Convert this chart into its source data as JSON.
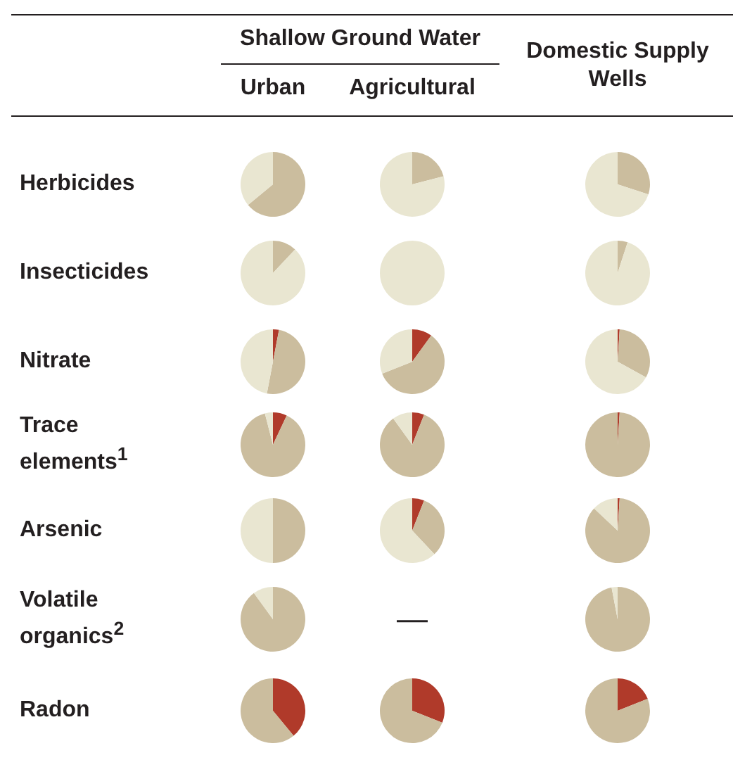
{
  "chart_data": [
    {
      "type": "other",
      "annotations": [
        "Shallow Ground Water",
        "Urban",
        "Agricultural",
        "Domestic Supply Wells",
        "Herbicides",
        "Insecticides",
        "Nitrate",
        "Trace elements$^{1}$",
        "Arsenic",
        "Volatile organics$^{2}$",
        "Radon"
      ]
    },
    {
      "type": "pie",
      "categories": [
        null,
        null,
        null
      ],
      "values": [
        0,
        64,
        36
      ],
      "colors": [
        "#b03a2a",
        "#cbbd9e",
        "#e9e6d1"
      ]
    },
    {
      "type": "pie",
      "categories": [
        null,
        null,
        null
      ],
      "values": [
        0,
        21,
        79
      ],
      "colors": [
        "#b03a2a",
        "#cbbd9e",
        "#e9e6d1"
      ]
    },
    {
      "type": "pie",
      "categories": [
        null,
        null,
        null
      ],
      "values": [
        0,
        30,
        70
      ],
      "colors": [
        "#b03a2a",
        "#cbbd9e",
        "#e9e6d1"
      ]
    },
    {
      "type": "pie",
      "categories": [
        null,
        null,
        null
      ],
      "values": [
        0,
        12,
        88
      ],
      "colors": [
        "#b03a2a",
        "#cbbd9e",
        "#e9e6d1"
      ]
    },
    {
      "type": "pie",
      "categories": [
        null,
        null,
        null
      ],
      "values": [
        0,
        0,
        100
      ],
      "colors": [
        "#b03a2a",
        "#cbbd9e",
        "#e9e6d1"
      ]
    },
    {
      "type": "pie",
      "categories": [
        null,
        null,
        null
      ],
      "values": [
        0,
        5,
        95
      ],
      "colors": [
        "#b03a2a",
        "#cbbd9e",
        "#e9e6d1"
      ]
    },
    {
      "type": "pie",
      "categories": [
        null,
        null,
        null
      ],
      "values": [
        3,
        50,
        47
      ],
      "colors": [
        "#b03a2a",
        "#cbbd9e",
        "#e9e6d1"
      ]
    },
    {
      "type": "pie",
      "categories": [
        null,
        null,
        null
      ],
      "values": [
        10,
        59,
        31
      ],
      "colors": [
        "#b03a2a",
        "#cbbd9e",
        "#e9e6d1"
      ]
    },
    {
      "type": "pie",
      "categories": [
        null,
        null,
        null
      ],
      "values": [
        1,
        32,
        67
      ],
      "colors": [
        "#b03a2a",
        "#cbbd9e",
        "#e9e6d1"
      ]
    },
    {
      "type": "pie",
      "categories": [
        null,
        null,
        null
      ],
      "values": [
        7,
        89,
        4
      ],
      "colors": [
        "#b03a2a",
        "#cbbd9e",
        "#e9e6d1"
      ]
    },
    {
      "type": "pie",
      "categories": [
        null,
        null,
        null
      ],
      "values": [
        6,
        84,
        10
      ],
      "colors": [
        "#b03a2a",
        "#cbbd9e",
        "#e9e6d1"
      ]
    },
    {
      "type": "pie",
      "categories": [
        null,
        null,
        null
      ],
      "values": [
        1,
        99,
        0
      ],
      "colors": [
        "#b03a2a",
        "#cbbd9e",
        "#e9e6d1"
      ]
    },
    {
      "type": "pie",
      "categories": [
        null,
        null,
        null
      ],
      "values": [
        0,
        50,
        50
      ],
      "colors": [
        "#b03a2a",
        "#cbbd9e",
        "#e9e6d1"
      ]
    },
    {
      "type": "pie",
      "categories": [
        null,
        null,
        null
      ],
      "values": [
        6,
        32,
        62
      ],
      "colors": [
        "#b03a2a",
        "#cbbd9e",
        "#e9e6d1"
      ]
    },
    {
      "type": "pie",
      "categories": [
        null,
        null,
        null
      ],
      "values": [
        1,
        86,
        13
      ],
      "colors": [
        "#b03a2a",
        "#cbbd9e",
        "#e9e6d1"
      ]
    },
    {
      "type": "pie",
      "categories": [
        null,
        null,
        null
      ],
      "values": [
        0,
        90,
        10
      ],
      "colors": [
        "#b03a2a",
        "#cbbd9e",
        "#e9e6d1"
      ]
    },
    {
      "type": "other",
      "annotations": [
        "—"
      ]
    },
    {
      "type": "pie",
      "categories": [
        null,
        null,
        null
      ],
      "values": [
        0,
        97,
        3
      ],
      "colors": [
        "#b03a2a",
        "#cbbd9e",
        "#e9e6d1"
      ]
    },
    {
      "type": "pie",
      "categories": [
        null,
        null,
        null
      ],
      "values": [
        39,
        61,
        0
      ],
      "colors": [
        "#b03a2a",
        "#cbbd9e",
        "#e9e6d1"
      ]
    },
    {
      "type": "pie",
      "categories": [
        null,
        null,
        null
      ],
      "values": [
        31,
        69,
        0
      ],
      "colors": [
        "#b03a2a",
        "#cbbd9e",
        "#e9e6d1"
      ]
    },
    {
      "type": "pie",
      "categories": [
        null,
        null,
        null
      ],
      "values": [
        19,
        81,
        0
      ],
      "colors": [
        "#b03a2a",
        "#cbbd9e",
        "#e9e6d1"
      ]
    }
  ]
}
